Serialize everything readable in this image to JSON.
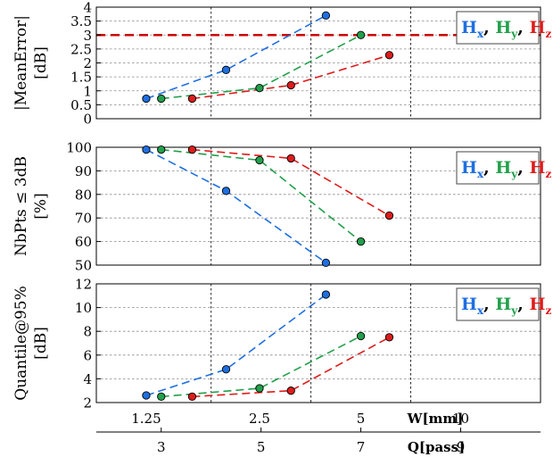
{
  "chart_data": [
    {
      "type": "line",
      "ylabel_lines": [
        "|MeanError|",
        "[dB]"
      ],
      "ylim": [
        0,
        4
      ],
      "yticks": [
        0,
        0.5,
        1,
        1.5,
        2,
        2.5,
        3,
        3.5,
        4
      ],
      "ytick_labels": [
        "0",
        "0.5",
        "1",
        "1.5",
        "2",
        "2.5",
        "3",
        "3.5",
        "4"
      ],
      "threshold": {
        "y": 3,
        "color": "#cc0000"
      },
      "legend_position": "top-right",
      "series": [
        {
          "name": "Hx",
          "base": "H",
          "sub": "x",
          "color": "#1f6fe0",
          "x": [
            2.7,
            4.3,
            6.3
          ],
          "y": [
            0.72,
            1.75,
            3.7
          ]
        },
        {
          "name": "Hy",
          "base": "H",
          "sub": "y",
          "color": "#22a04b",
          "x": [
            3.0,
            4.97,
            7.0
          ],
          "y": [
            0.72,
            1.1,
            3.0
          ]
        },
        {
          "name": "Hz",
          "base": "H",
          "sub": "z",
          "color": "#dd1c1c",
          "x": [
            3.62,
            5.6,
            7.57
          ],
          "y": [
            0.72,
            1.2,
            2.28
          ]
        }
      ]
    },
    {
      "type": "line",
      "ylabel_lines": [
        "NbPts ≤ 3dB",
        "[%]"
      ],
      "ylim": [
        50,
        100
      ],
      "yticks": [
        50,
        60,
        70,
        80,
        90,
        100
      ],
      "ytick_labels": [
        "50",
        "60",
        "70",
        "80",
        "90",
        "100"
      ],
      "legend_position": "top-right",
      "series": [
        {
          "name": "Hx",
          "base": "H",
          "sub": "x",
          "color": "#1f6fe0",
          "x": [
            2.7,
            4.3,
            6.3
          ],
          "y": [
            99,
            81.5,
            51
          ]
        },
        {
          "name": "Hy",
          "base": "H",
          "sub": "y",
          "color": "#22a04b",
          "x": [
            3.0,
            4.97,
            7.0
          ],
          "y": [
            99,
            94.5,
            60
          ]
        },
        {
          "name": "Hz",
          "base": "H",
          "sub": "z",
          "color": "#dd1c1c",
          "x": [
            3.62,
            5.6,
            7.57
          ],
          "y": [
            99,
            95.3,
            71
          ]
        }
      ]
    },
    {
      "type": "line",
      "ylabel_lines": [
        "Quantile@95%",
        "[dB]"
      ],
      "ylim": [
        2,
        12
      ],
      "yticks": [
        2,
        4,
        6,
        8,
        10,
        12
      ],
      "ytick_labels": [
        "2",
        "4",
        "6",
        "8",
        "10",
        "12"
      ],
      "legend_position": "top-right",
      "series": [
        {
          "name": "Hx",
          "base": "H",
          "sub": "x",
          "color": "#1f6fe0",
          "x": [
            2.7,
            4.3,
            6.3
          ],
          "y": [
            2.6,
            4.8,
            11.1
          ]
        },
        {
          "name": "Hy",
          "base": "H",
          "sub": "y",
          "color": "#22a04b",
          "x": [
            3.0,
            4.97,
            7.0
          ],
          "y": [
            2.5,
            3.2,
            7.6
          ]
        },
        {
          "name": "Hz",
          "base": "H",
          "sub": "z",
          "color": "#dd1c1c",
          "x": [
            3.62,
            5.6,
            7.57
          ],
          "y": [
            2.5,
            3.0,
            7.5
          ]
        }
      ]
    }
  ],
  "x_axis": {
    "ref_scale": "Q",
    "xlim": [
      1.7,
      10.6
    ],
    "vgrid_q": [
      4.0,
      6.0,
      8.0
    ],
    "w_axis": {
      "label": "W[mm]",
      "ticks": [
        {
          "q": 2.7,
          "label": "1.25"
        },
        {
          "q": 4.97,
          "label": "2.5"
        },
        {
          "q": 7.0,
          "label": "5"
        },
        {
          "q": 9.0,
          "label": "10"
        }
      ]
    },
    "q_axis": {
      "label": "Q[pass]",
      "ticks": [
        {
          "q": 3,
          "label": "3"
        },
        {
          "q": 5,
          "label": "5"
        },
        {
          "q": 7,
          "label": "7"
        },
        {
          "q": 9,
          "label": "9"
        }
      ]
    }
  }
}
